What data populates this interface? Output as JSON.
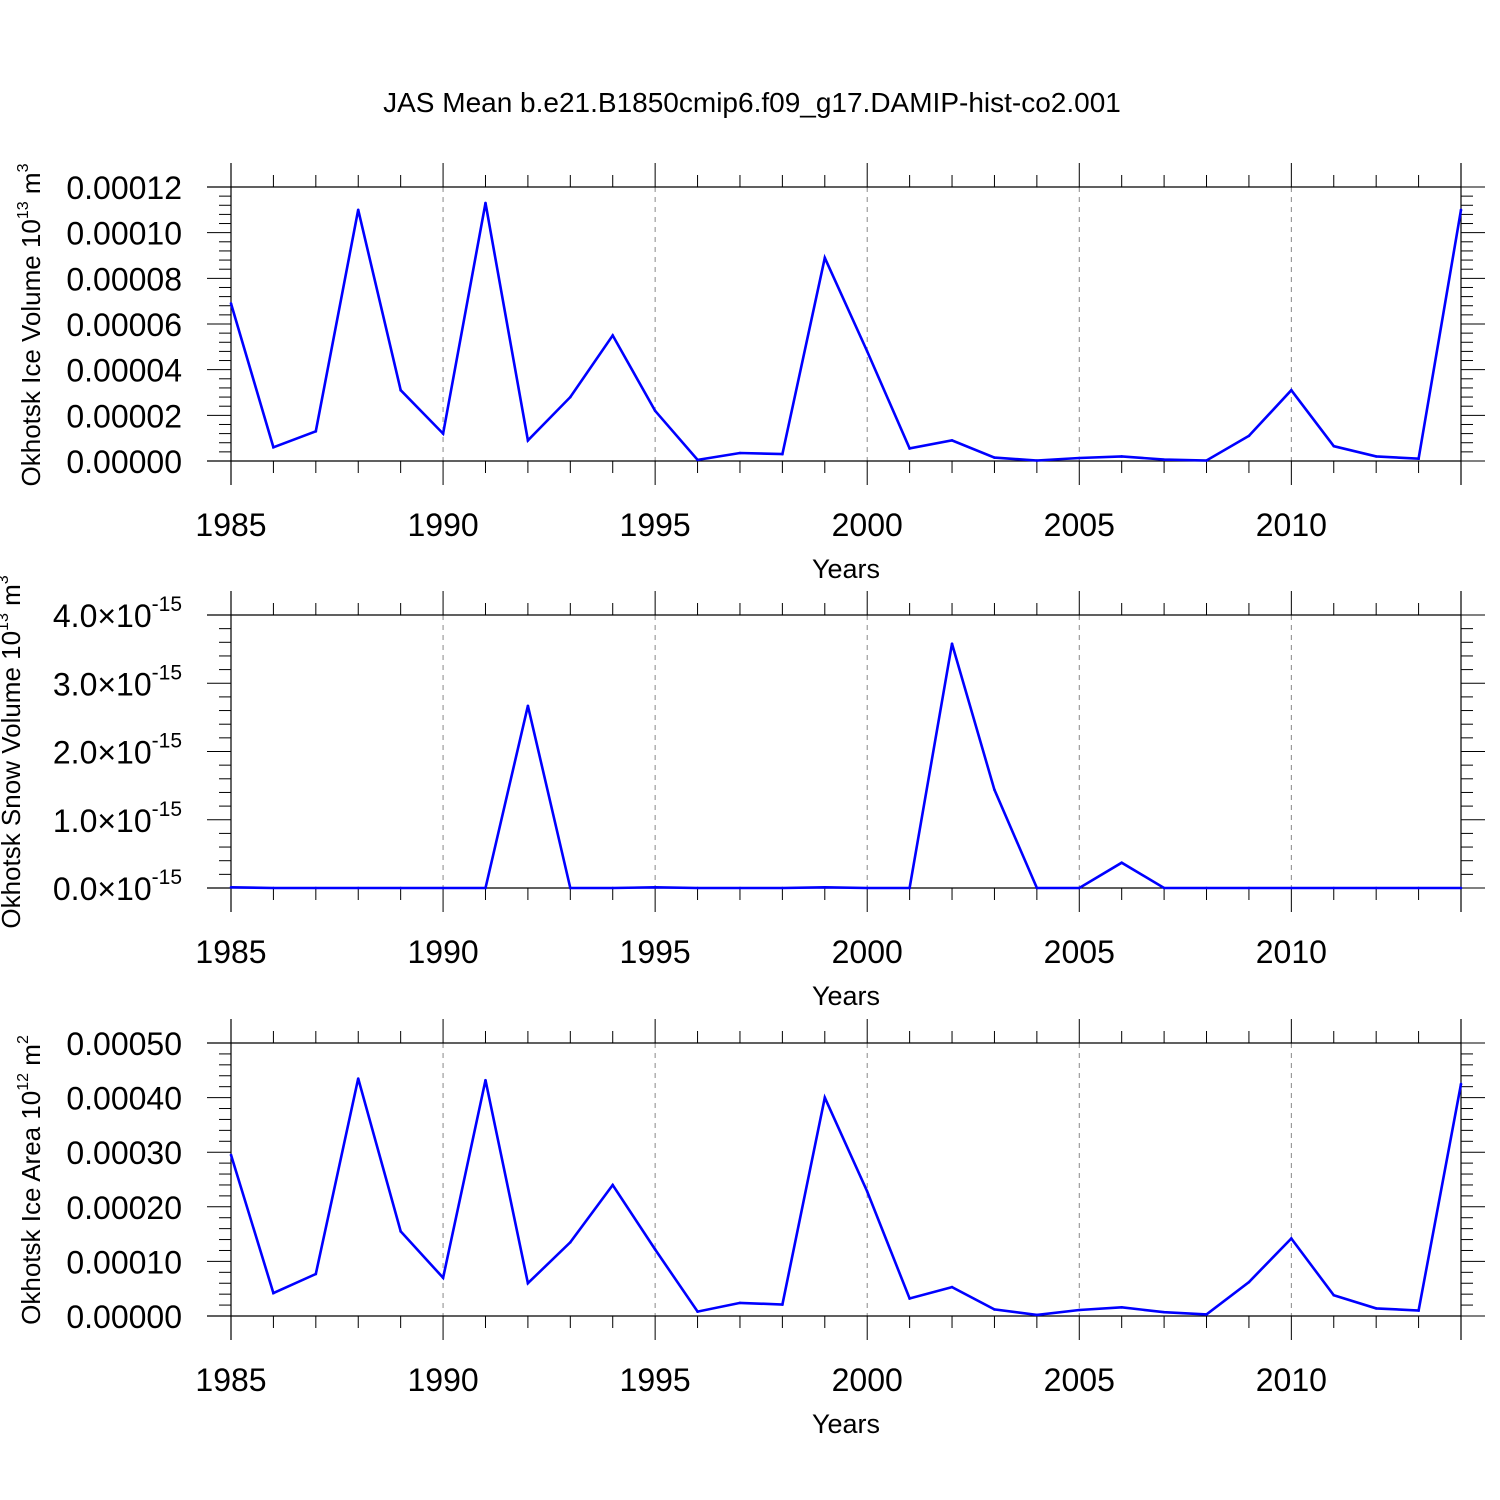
{
  "title": "JAS Mean b.e21.B1850cmip6.f09_g17.DAMIP-hist-co2.001",
  "colors": {
    "line": "#0000ff",
    "axis": "#000000",
    "grid": "#888888",
    "background": "#ffffff"
  },
  "chart_data": [
    {
      "type": "line",
      "title": "JAS Mean b.e21.B1850cmip6.f09_g17.DAMIP-hist-co2.001",
      "xlabel": "Years",
      "ylabel": {
        "main": "Okhotsk Ice Volume 10",
        "sup": "13",
        "unit": " m",
        "unit_sup": "3"
      },
      "xlim": [
        1985,
        2014
      ],
      "ylim": [
        0,
        0.00012
      ],
      "xticks": [
        "1985",
        "1990",
        "1995",
        "2000",
        "2005",
        "2010"
      ],
      "yticks": [
        "0.00000",
        "0.00002",
        "0.00004",
        "0.00006",
        "0.00008",
        "0.00010",
        "0.00012"
      ],
      "ytick_values": [
        0,
        2e-05,
        4e-05,
        6e-05,
        8e-05,
        0.0001,
        0.00012
      ],
      "grid": "vertical dashed at 5-year ticks",
      "series": [
        {
          "name": "Okhotsk Ice Volume",
          "x": [
            1985,
            1986,
            1987,
            1988,
            1989,
            1990,
            1991,
            1992,
            1993,
            1994,
            1995,
            1996,
            1997,
            1998,
            1999,
            2000,
            2001,
            2002,
            2003,
            2004,
            2005,
            2006,
            2007,
            2008,
            2009,
            2010,
            2011,
            2012,
            2013,
            2014
          ],
          "values": [
            6.9e-05,
            6e-06,
            1.3e-05,
            0.00011,
            3.1e-05,
            1.2e-05,
            0.000113,
            9e-06,
            2.8e-05,
            5.5e-05,
            2.2e-05,
            5e-07,
            3.5e-06,
            3e-06,
            8.9e-05,
            4.8e-05,
            5.5e-06,
            9e-06,
            1.5e-06,
            2e-07,
            1.3e-06,
            2e-06,
            6e-07,
            2e-07,
            1.1e-05,
            3.1e-05,
            6.5e-06,
            2e-06,
            1e-06,
            0.00011
          ]
        }
      ]
    },
    {
      "type": "line",
      "xlabel": "Years",
      "ylabel": {
        "main": "Okhotsk Snow Volume 10",
        "sup": "13",
        "unit": " m",
        "unit_sup": "3"
      },
      "xlim": [
        1985,
        2014
      ],
      "ylim": [
        0,
        4e-15
      ],
      "xticks": [
        "1985",
        "1990",
        "1995",
        "2000",
        "2005",
        "2010"
      ],
      "yticks": [
        {
          "mantissa": "0.0",
          "times": "×",
          "base": "10",
          "exp": "-15"
        },
        {
          "mantissa": "1.0",
          "times": "×",
          "base": "10",
          "exp": "-15"
        },
        {
          "mantissa": "2.0",
          "times": "×",
          "base": "10",
          "exp": "-15"
        },
        {
          "mantissa": "3.0",
          "times": "×",
          "base": "10",
          "exp": "-15"
        },
        {
          "mantissa": "4.0",
          "times": "×",
          "base": "10",
          "exp": "-15"
        }
      ],
      "ytick_values": [
        0,
        1e-15,
        2e-15,
        3e-15,
        4e-15
      ],
      "grid": "vertical dashed at 5-year ticks",
      "series": [
        {
          "name": "Okhotsk Snow Volume",
          "x": [
            1985,
            1986,
            1987,
            1988,
            1989,
            1990,
            1991,
            1992,
            1993,
            1994,
            1995,
            1996,
            1997,
            1998,
            1999,
            2000,
            2001,
            2002,
            2003,
            2004,
            2005,
            2006,
            2007,
            2008,
            2009,
            2010,
            2011,
            2012,
            2013,
            2014
          ],
          "values": [
            1e-17,
            0,
            0,
            0,
            0,
            0,
            0,
            2.67e-15,
            0,
            0,
            1e-17,
            0,
            0,
            0,
            1e-17,
            0,
            0,
            3.58e-15,
            1.44e-15,
            0,
            0,
            3.7e-16,
            0,
            0,
            0,
            0,
            0,
            0,
            0,
            0
          ]
        }
      ]
    },
    {
      "type": "line",
      "xlabel": "Years",
      "ylabel": {
        "main": "Okhotsk Ice Area 10",
        "sup": "12",
        "unit": " m",
        "unit_sup": "2"
      },
      "xlim": [
        1985,
        2014
      ],
      "ylim": [
        0,
        0.0005
      ],
      "xticks": [
        "1985",
        "1990",
        "1995",
        "2000",
        "2005",
        "2010"
      ],
      "yticks": [
        "0.00000",
        "0.00010",
        "0.00020",
        "0.00030",
        "0.00040",
        "0.00050"
      ],
      "ytick_values": [
        0,
        0.0001,
        0.0002,
        0.0003,
        0.0004,
        0.0005
      ],
      "grid": "vertical dashed at 5-year ticks",
      "series": [
        {
          "name": "Okhotsk Ice Area",
          "x": [
            1985,
            1986,
            1987,
            1988,
            1989,
            1990,
            1991,
            1992,
            1993,
            1994,
            1995,
            1996,
            1997,
            1998,
            1999,
            2000,
            2001,
            2002,
            2003,
            2004,
            2005,
            2006,
            2007,
            2008,
            2009,
            2010,
            2011,
            2012,
            2013,
            2014
          ],
          "values": [
            0.000295,
            4.2e-05,
            7.7e-05,
            0.000435,
            0.000155,
            7e-05,
            0.000432,
            6e-05,
            0.000135,
            0.00024,
            0.000122,
            8e-06,
            2.4e-05,
            2.1e-05,
            0.0004,
            0.000228,
            3.2e-05,
            5.3e-05,
            1.2e-05,
            2e-06,
            1.1e-05,
            1.6e-05,
            7e-06,
            3e-06,
            6.2e-05,
            0.000142,
            3.8e-05,
            1.4e-05,
            1e-05,
            0.000425
          ]
        }
      ]
    }
  ]
}
